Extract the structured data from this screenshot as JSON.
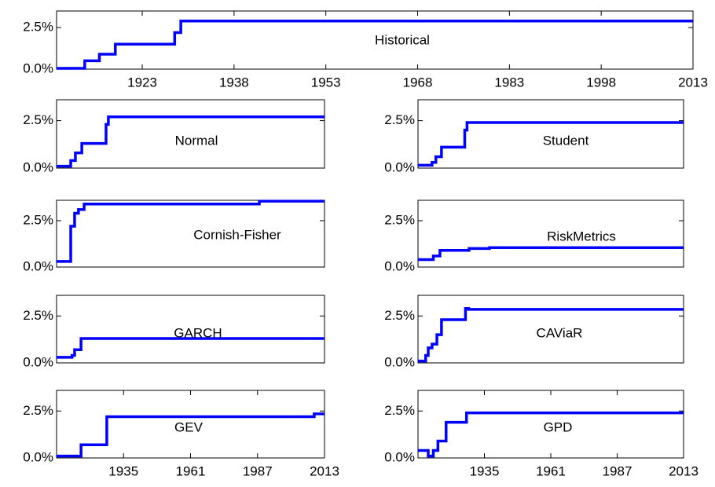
{
  "chart_data": [
    {
      "type": "line",
      "label": "Historical",
      "color": "#0000ff",
      "x": [
        1909,
        1913.6,
        1913.6,
        1916,
        1916,
        1918.6,
        1918.6,
        1928.3,
        1928.3,
        1929.3,
        1929.3,
        2013
      ],
      "values": [
        0.05,
        0.05,
        0.5,
        0.5,
        0.9,
        0.9,
        1.5,
        1.5,
        2.2,
        2.2,
        2.9,
        2.9
      ],
      "xlim": [
        1909,
        2013
      ],
      "ylim": [
        0,
        3.5
      ],
      "xticks": [
        1923,
        1938,
        1953,
        1968,
        1983,
        1998,
        2013
      ],
      "yticks": [
        {
          "value": 0,
          "label": "0.0%"
        },
        {
          "value": 2.5,
          "label": "2.5%"
        }
      ]
    },
    {
      "type": "line",
      "label": "Normal",
      "color": "#0000ff",
      "x": [
        1909,
        1914.5,
        1914.5,
        1916.3,
        1916.3,
        1918.8,
        1918.8,
        1928.2,
        1928.2,
        1929.1,
        1929.1,
        2013
      ],
      "values": [
        0.1,
        0.1,
        0.4,
        0.4,
        0.8,
        0.8,
        1.3,
        1.3,
        2.3,
        2.3,
        2.7,
        2.7
      ],
      "xlim": [
        1909,
        2013
      ],
      "ylim": [
        0,
        3.6
      ],
      "yticks": [
        {
          "value": 0,
          "label": "0.0%"
        },
        {
          "value": 2.5,
          "label": "2.5%"
        }
      ]
    },
    {
      "type": "line",
      "label": "Student",
      "color": "#0000ff",
      "x": [
        1909,
        1914.5,
        1914.5,
        1916,
        1916,
        1918.2,
        1918.2,
        1927.3,
        1927.3,
        1928.2,
        1928.2,
        2013
      ],
      "values": [
        0.15,
        0.15,
        0.3,
        0.3,
        0.6,
        0.6,
        1.1,
        1.1,
        2.0,
        2.0,
        2.4,
        2.4
      ],
      "xlim": [
        1909,
        2013
      ],
      "ylim": [
        0,
        3.6
      ],
      "yticks": [
        {
          "value": 0,
          "label": "0.0%"
        },
        {
          "value": 2.5,
          "label": "2.5%"
        }
      ]
    },
    {
      "type": "line",
      "label": "Cornish-Fisher",
      "color": "#0000ff",
      "x": [
        1909,
        1914.5,
        1914.5,
        1916,
        1916,
        1917.5,
        1917.5,
        1919.7,
        1919.7,
        1987.7,
        1987.7,
        2013
      ],
      "values": [
        0.3,
        0.3,
        2.2,
        2.2,
        2.9,
        2.9,
        3.1,
        3.1,
        3.4,
        3.4,
        3.55,
        3.55
      ],
      "xlim": [
        1909,
        2013
      ],
      "ylim": [
        0,
        3.6
      ],
      "yticks": [
        {
          "value": 0,
          "label": "0.0%"
        },
        {
          "value": 2.5,
          "label": "2.5%"
        }
      ]
    },
    {
      "type": "line",
      "label": "RiskMetrics",
      "color": "#0000ff",
      "x": [
        1909,
        1915,
        1915,
        1917.6,
        1917.6,
        1929,
        1929,
        1937,
        1937,
        2013
      ],
      "values": [
        0.4,
        0.4,
        0.6,
        0.6,
        0.9,
        0.9,
        1.0,
        1.0,
        1.05,
        1.05
      ],
      "xlim": [
        1909,
        2013
      ],
      "ylim": [
        0,
        3.6
      ],
      "yticks": [
        {
          "value": 0,
          "label": "0.0%"
        },
        {
          "value": 2.5,
          "label": "2.5%"
        }
      ]
    },
    {
      "type": "line",
      "label": "GARCH",
      "color": "#0000ff",
      "x": [
        1909,
        1915,
        1915,
        1916,
        1916,
        1918.5,
        1918.5,
        2013
      ],
      "values": [
        0.3,
        0.3,
        0.4,
        0.4,
        0.7,
        0.7,
        1.3,
        1.3
      ],
      "xlim": [
        1909,
        2013
      ],
      "ylim": [
        0,
        3.6
      ],
      "yticks": [
        {
          "value": 0,
          "label": "0.0%"
        },
        {
          "value": 2.5,
          "label": "2.5%"
        }
      ]
    },
    {
      "type": "line",
      "label": "CAViaR",
      "color": "#0000ff",
      "x": [
        1909,
        1912,
        1912,
        1913,
        1913,
        1914.5,
        1914.5,
        1916.4,
        1916.4,
        1918.2,
        1918.2,
        1927.6,
        1927.6,
        1928.8,
        1928.8,
        2013
      ],
      "values": [
        0.1,
        0.1,
        0.4,
        0.4,
        0.8,
        0.8,
        1.0,
        1.0,
        1.5,
        1.5,
        2.3,
        2.3,
        2.9,
        2.9,
        2.85,
        2.85
      ],
      "xlim": [
        1909,
        2013
      ],
      "ylim": [
        0,
        3.6
      ],
      "yticks": [
        {
          "value": 0,
          "label": "0.0%"
        },
        {
          "value": 2.5,
          "label": "2.5%"
        }
      ]
    },
    {
      "type": "line",
      "label": "GEV",
      "color": "#0000ff",
      "x": [
        1909,
        1918.5,
        1918.5,
        1928.5,
        1928.5,
        2009,
        2009,
        2013
      ],
      "values": [
        0.1,
        0.1,
        0.7,
        0.7,
        2.2,
        2.2,
        2.35,
        2.35
      ],
      "xlim": [
        1909,
        2013
      ],
      "ylim": [
        0,
        3.6
      ],
      "xticks": [
        1935,
        1961,
        1987,
        2013
      ],
      "yticks": [
        {
          "value": 0,
          "label": "0.0%"
        },
        {
          "value": 2.5,
          "label": "2.5%"
        }
      ]
    },
    {
      "type": "line",
      "label": "GPD",
      "color": "#0000ff",
      "x": [
        1909,
        1913,
        1913,
        1915,
        1915,
        1916.8,
        1916.8,
        1920,
        1920,
        1928,
        1928,
        1929.2,
        1929.2,
        2013
      ],
      "values": [
        0.4,
        0.4,
        0.1,
        0.1,
        0.4,
        0.4,
        0.9,
        0.9,
        1.9,
        1.9,
        2.4,
        2.4,
        2.4,
        2.4
      ],
      "xlim": [
        1909,
        2013
      ],
      "ylim": [
        0,
        3.6
      ],
      "xticks": [
        1935,
        1961,
        1987,
        2013
      ],
      "yticks": [
        {
          "value": 0,
          "label": "0.0%"
        },
        {
          "value": 2.5,
          "label": "2.5%"
        }
      ]
    }
  ]
}
